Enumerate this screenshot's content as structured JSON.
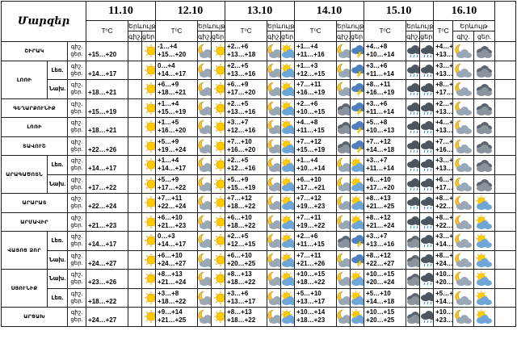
{
  "header": {
    "region_label": "Մարզեր",
    "temp_label": "T⁰C",
    "phen_label": "Երևույթ",
    "night": "գիշ.",
    "day": "ցեր.",
    "dates": [
      "11.10",
      "12.10",
      "13.10",
      "14.10",
      "15.10",
      "16.10"
    ]
  },
  "kinds": {
    "lowland": "Լեռ.",
    "foot": "Նախ.",
    "hill": "Նախ.",
    "mount": "Լեռ."
  },
  "rows": [
    {
      "region": "ՇԻՐԱԿ",
      "kind": "",
      "days": [
        {
          "n": "",
          "d": "+15…+20",
          "ni": "",
          "di": "sun"
        },
        {
          "n": "-1…+4",
          "d": "+15…+20",
          "ni": "moon-cloud",
          "di": "sun"
        },
        {
          "n": "+2…+6",
          "d": "+13…+18",
          "ni": "moon-cloud",
          "di": "cloud-sun"
        },
        {
          "n": "+1…+4",
          "d": "+11…+16",
          "ni": "moon-cloud",
          "di": "storm"
        },
        {
          "n": "+4…+8",
          "d": "+10…+14",
          "ni": "rain",
          "di": "rain"
        },
        {
          "n": "+4…+8",
          "d": "+13…+17",
          "ni": "moon-cloud",
          "di": "cloud"
        }
      ]
    },
    {
      "region": "ԼՈՌԻ",
      "kind": "lowland",
      "days": [
        {
          "n": "",
          "d": "+14…+17",
          "ni": "",
          "di": "sun"
        },
        {
          "n": "0…+4",
          "d": "+14…+17",
          "ni": "moon-cloud",
          "di": "sun"
        },
        {
          "n": "+2…+5",
          "d": "+13…+16",
          "ni": "moon-cloud",
          "di": "cloud-sun"
        },
        {
          "n": "+1…+3",
          "d": "+12…+15",
          "ni": "moon-cloud",
          "di": "storm"
        },
        {
          "n": "+3…+6",
          "d": "+11…+14",
          "ni": "rain",
          "di": "rain"
        },
        {
          "n": "+3…+6",
          "d": "+13…+16",
          "ni": "moon-cloud",
          "di": "cloud"
        }
      ]
    },
    {
      "region": "ԼՈՌԻ",
      "kind": "foot",
      "days": [
        {
          "n": "",
          "d": "+18…+21",
          "ni": "",
          "di": "sun"
        },
        {
          "n": "+6…+9",
          "d": "+18…+21",
          "ni": "moon-cloud",
          "di": "sun"
        },
        {
          "n": "+6…+9",
          "d": "+17…+20",
          "ni": "moon-cloud",
          "di": "cloud-sun"
        },
        {
          "n": "+7…+11",
          "d": "+16…+19",
          "ni": "moon-cloud",
          "di": "storm"
        },
        {
          "n": "+8…+11",
          "d": "+16…+19",
          "ni": "rain",
          "di": "rain"
        },
        {
          "n": "+8…+11",
          "d": "+17…+20",
          "ni": "moon-cloud",
          "di": "cloud"
        }
      ]
    },
    {
      "region": "ԳԵՂԱՐՔՈՒՆԻՔ",
      "kind": "",
      "days": [
        {
          "n": "",
          "d": "+15…+19",
          "ni": "",
          "di": "sun"
        },
        {
          "n": "+1…+4",
          "d": "+15…+19",
          "ni": "moon-cloud",
          "di": "sun"
        },
        {
          "n": "+2…+5",
          "d": "+13…+16",
          "ni": "moon-cloud",
          "di": "cloud-sun"
        },
        {
          "n": "+2…+6",
          "d": "+10…+15",
          "ni": "cloud",
          "di": "storm"
        },
        {
          "n": "+3…+6",
          "d": "+11…+14",
          "ni": "rain",
          "di": "rain"
        },
        {
          "n": "+2…+6",
          "d": "+13…+16",
          "ni": "moon-cloud",
          "di": "cloud"
        }
      ]
    },
    {
      "region": "ԼՈՌԻ",
      "kind": "",
      "days": [
        {
          "n": "",
          "d": "+18…+21",
          "ni": "",
          "di": "sun"
        },
        {
          "n": "+1…+5",
          "d": "+16…+20",
          "ni": "moon-cloud",
          "di": "sun"
        },
        {
          "n": "+3…+7",
          "d": "+12…+16",
          "ni": "moon-cloud",
          "di": "cloud-sun"
        },
        {
          "n": "+4…+8",
          "d": "+11…+15",
          "ni": "cloud",
          "di": "storm"
        },
        {
          "n": "+5…+8",
          "d": "+10…+13",
          "ni": "rain",
          "di": "rain"
        },
        {
          "n": "+4…+8",
          "d": "+13…+16",
          "ni": "moon-cloud",
          "di": "cloud"
        }
      ]
    },
    {
      "region": "ՏԱՎՈՒՇ",
      "kind": "",
      "days": [
        {
          "n": "",
          "d": "+22…+26",
          "ni": "",
          "di": "sun"
        },
        {
          "n": "+5…+9",
          "d": "+19…+24",
          "ni": "moon-cloud",
          "di": "sun"
        },
        {
          "n": "+7…+10",
          "d": "+16…+20",
          "ni": "moon-cloud",
          "di": "cloud-sun"
        },
        {
          "n": "+7…+12",
          "d": "+15…+19",
          "ni": "cloud",
          "di": "storm"
        },
        {
          "n": "+7…+12",
          "d": "+14…+18",
          "ni": "rain",
          "di": "rain"
        },
        {
          "n": "+7…+12",
          "d": "+16…+20",
          "ni": "moon-cloud",
          "di": "cloud"
        }
      ]
    },
    {
      "region": "ԱՐԱԳԱԾՈՏՆ",
      "kind": "lowland",
      "days": [
        {
          "n": "",
          "d": "+14…+17",
          "ni": "",
          "di": "sun"
        },
        {
          "n": "+1…+4",
          "d": "+14…+17",
          "ni": "moon-cloud",
          "di": "sun"
        },
        {
          "n": "+2…+5",
          "d": "+12…+16",
          "ni": "moon-cloud",
          "di": "cloud-sun"
        },
        {
          "n": "+1…+4",
          "d": "+10…+14",
          "ni": "moon-cloud",
          "di": "cloud-sun"
        },
        {
          "n": "+3…+7",
          "d": "+11…+14",
          "ni": "rain",
          "di": "rain"
        },
        {
          "n": "+3…+7",
          "d": "+13…+16",
          "ni": "moon-cloud",
          "di": "cloud"
        }
      ]
    },
    {
      "region": "ԱՐԱԳԱԾՈՏՆ",
      "kind": "foot",
      "days": [
        {
          "n": "",
          "d": "+17…+22",
          "ni": "",
          "di": "sun"
        },
        {
          "n": "+5…+9",
          "d": "+17…+22",
          "ni": "moon-cloud",
          "di": "sun"
        },
        {
          "n": "+5…+9",
          "d": "+15…+19",
          "ni": "moon-cloud",
          "di": "cloud-sun"
        },
        {
          "n": "+6…+10",
          "d": "+17…+21",
          "ni": "moon-cloud",
          "di": "cloud-sun"
        },
        {
          "n": "+6…+10",
          "d": "+17…+20",
          "ni": "rain",
          "di": "rain"
        },
        {
          "n": "+6…+10",
          "d": "+17…+21",
          "ni": "moon-cloud",
          "di": "cloud"
        }
      ]
    },
    {
      "region": "ԱՐԱՐԱՏ",
      "kind": "",
      "days": [
        {
          "n": "",
          "d": "+22…+24",
          "ni": "",
          "di": "sun"
        },
        {
          "n": "+7…+11",
          "d": "+22…+24",
          "ni": "moon-cloud",
          "di": "sun"
        },
        {
          "n": "+7…+12",
          "d": "+18…+22",
          "ni": "moon-cloud",
          "di": "cloud-sun"
        },
        {
          "n": "+7…+12",
          "d": "+19…+23",
          "ni": "moon-cloud",
          "di": "cloud-sun"
        },
        {
          "n": "+8…+13",
          "d": "+21…+25",
          "ni": "rain",
          "di": "rain"
        },
        {
          "n": "+8…+13",
          "d": "+22…+26",
          "ni": "moon-cloud",
          "di": "cloud-sun"
        }
      ]
    },
    {
      "region": "ԱՐՄԱՎԻՐ",
      "kind": "",
      "days": [
        {
          "n": "",
          "d": "+21…+23",
          "ni": "",
          "di": "sun"
        },
        {
          "n": "+6…+10",
          "d": "+21…+23",
          "ni": "moon-cloud",
          "di": "sun"
        },
        {
          "n": "+6…+10",
          "d": "+18…+22",
          "ni": "moon-cloud",
          "di": "cloud-sun"
        },
        {
          "n": "+7…+11",
          "d": "+19…+22",
          "ni": "moon-cloud",
          "di": "cloud-sun"
        },
        {
          "n": "+8…+12",
          "d": "+21…+24",
          "ni": "rain",
          "di": "rain"
        },
        {
          "n": "+8…+12",
          "d": "+22…+25",
          "ni": "moon-cloud",
          "di": "cloud-sun"
        }
      ]
    },
    {
      "region": "ՎԱՅՈՑ ՁՈՐ",
      "kind": "lowland",
      "days": [
        {
          "n": "",
          "d": "+14…+17",
          "ni": "",
          "di": "sun"
        },
        {
          "n": "0…+3",
          "d": "+14…+17",
          "ni": "moon-cloud",
          "di": "sun"
        },
        {
          "n": "+2…+5",
          "d": "+12…+15",
          "ni": "moon-cloud",
          "di": "cloud-sun"
        },
        {
          "n": "+2…+6",
          "d": "+11…+15",
          "ni": "cloud",
          "di": "storm"
        },
        {
          "n": "+3…+7",
          "d": "+13…+16",
          "ni": "cloud",
          "di": "rain"
        },
        {
          "n": "+3…+7",
          "d": "+14…+17",
          "ni": "moon-cloud",
          "di": "cloud-sun"
        }
      ]
    },
    {
      "region": "ՎԱՅՈՑ ՁՈՐ",
      "kind": "foot",
      "days": [
        {
          "n": "",
          "d": "+24…+27",
          "ni": "",
          "di": "sun"
        },
        {
          "n": "+6…+10",
          "d": "+24…+27",
          "ni": "moon-cloud",
          "di": "sun"
        },
        {
          "n": "+6…+10",
          "d": "+20…+25",
          "ni": "moon-cloud",
          "di": "cloud-sun"
        },
        {
          "n": "+7…+11",
          "d": "+21…+26",
          "ni": "moon-cloud",
          "di": "storm"
        },
        {
          "n": "+8…+12",
          "d": "+22…+27",
          "ni": "cloud",
          "di": "rain"
        },
        {
          "n": "+8…+12",
          "d": "+24…+28",
          "ni": "moon-cloud",
          "di": "cloud-sun"
        }
      ]
    },
    {
      "region": "ՍՅՈՒՆԻՔ",
      "kind": "hill",
      "days": [
        {
          "n": "",
          "d": "+23…+26",
          "ni": "",
          "di": "sun"
        },
        {
          "n": "+8…+13",
          "d": "+21…+24",
          "ni": "moon-cloud",
          "di": "sun"
        },
        {
          "n": "+8…+13",
          "d": "+18…+22",
          "ni": "moon-cloud",
          "di": "cloud-sun"
        },
        {
          "n": "+10…+15",
          "d": "+18…+22",
          "ni": "moon-cloud",
          "di": "cloud-sun"
        },
        {
          "n": "+10…+15",
          "d": "+20…+24",
          "ni": "cloud",
          "di": "rain"
        },
        {
          "n": "+10…+15",
          "d": "+20…+24",
          "ni": "moon-cloud",
          "di": "cloud-sun"
        }
      ]
    },
    {
      "region": "ՍՅՈՒՆԻՔ",
      "kind": "mount",
      "days": [
        {
          "n": "",
          "d": "+18…+22",
          "ni": "",
          "di": "sun"
        },
        {
          "n": "+3…+8",
          "d": "+18…+22",
          "ni": "moon-cloud",
          "di": "sun"
        },
        {
          "n": "+3…+6",
          "d": "+13…+17",
          "ni": "moon-cloud",
          "di": "cloud-sun"
        },
        {
          "n": "+5…+10",
          "d": "+13…+17",
          "ni": "moon-cloud",
          "di": "cloud-sun"
        },
        {
          "n": "+5…+10",
          "d": "+14…+18",
          "ni": "cloud",
          "di": "rain"
        },
        {
          "n": "+5…+10",
          "d": "+14…+18",
          "ni": "moon-cloud",
          "di": "cloud-sun"
        }
      ]
    },
    {
      "region": "ԱՐՑԱԽ",
      "kind": "",
      "days": [
        {
          "n": "",
          "d": "+24…+27",
          "ni": "",
          "di": "sun"
        },
        {
          "n": "+9…+14",
          "d": "+21…+25",
          "ni": "moon-cloud",
          "di": "sun"
        },
        {
          "n": "+8…+13",
          "d": "+18…+22",
          "ni": "moon-cloud",
          "di": "cloud-sun"
        },
        {
          "n": "+10…+14",
          "d": "+18…+23",
          "ni": "moon-cloud",
          "di": "cloud-sun"
        },
        {
          "n": "+10…+15",
          "d": "+20…+25",
          "ni": "cloud",
          "di": "rain"
        },
        {
          "n": "+10…+15",
          "d": "+23…+28",
          "ni": "moon-cloud",
          "di": "cloud-sun"
        }
      ]
    }
  ]
}
